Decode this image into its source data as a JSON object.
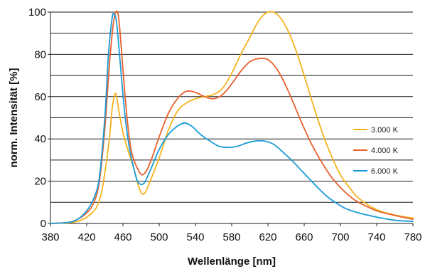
{
  "chart_data": {
    "type": "line",
    "xlabel": "Wellenlänge [nm]",
    "ylabel": "norm. Intensität [%]",
    "xlim": [
      380,
      780
    ],
    "ylim": [
      0,
      100
    ],
    "x_ticks": [
      "380",
      "420",
      "460",
      "500",
      "540",
      "580",
      "620",
      "660",
      "700",
      "740",
      "780"
    ],
    "y_ticks": [
      "0",
      "20",
      "40",
      "60",
      "80",
      "100"
    ],
    "grid": "horizontal",
    "legend_position": "right",
    "series": [
      {
        "name": "3.000 K",
        "color": "#F5B31C",
        "points": [
          [
            380,
            0
          ],
          [
            400,
            0.3
          ],
          [
            410,
            1
          ],
          [
            420,
            3
          ],
          [
            430,
            7
          ],
          [
            436,
            14
          ],
          [
            440,
            24
          ],
          [
            445,
            40
          ],
          [
            448,
            54
          ],
          [
            451,
            61
          ],
          [
            453,
            60
          ],
          [
            456,
            52
          ],
          [
            460,
            43
          ],
          [
            466,
            34
          ],
          [
            472,
            26
          ],
          [
            477,
            18
          ],
          [
            481,
            14
          ],
          [
            485,
            15
          ],
          [
            490,
            20
          ],
          [
            500,
            31
          ],
          [
            510,
            44
          ],
          [
            520,
            53
          ],
          [
            530,
            57
          ],
          [
            540,
            59
          ],
          [
            550,
            60
          ],
          [
            560,
            61
          ],
          [
            570,
            64
          ],
          [
            580,
            71
          ],
          [
            590,
            80
          ],
          [
            600,
            88
          ],
          [
            610,
            96
          ],
          [
            620,
            100
          ],
          [
            630,
            99
          ],
          [
            640,
            93
          ],
          [
            650,
            83
          ],
          [
            660,
            70
          ],
          [
            670,
            56
          ],
          [
            680,
            43
          ],
          [
            690,
            32
          ],
          [
            700,
            23
          ],
          [
            710,
            17
          ],
          [
            720,
            12
          ],
          [
            740,
            6.5
          ],
          [
            760,
            4
          ],
          [
            780,
            2.5
          ]
        ]
      },
      {
        "name": "4.000 K",
        "color": "#E8612C",
        "points": [
          [
            380,
            0
          ],
          [
            400,
            0.5
          ],
          [
            410,
            2
          ],
          [
            420,
            5
          ],
          [
            428,
            10
          ],
          [
            434,
            20
          ],
          [
            440,
            45
          ],
          [
            445,
            75
          ],
          [
            449,
            93
          ],
          [
            452,
            100
          ],
          [
            455,
            98
          ],
          [
            458,
            84
          ],
          [
            462,
            62
          ],
          [
            466,
            44
          ],
          [
            470,
            33
          ],
          [
            476,
            26
          ],
          [
            481,
            23
          ],
          [
            486,
            25
          ],
          [
            492,
            31
          ],
          [
            500,
            41
          ],
          [
            510,
            52
          ],
          [
            520,
            59
          ],
          [
            530,
            62.5
          ],
          [
            540,
            62
          ],
          [
            550,
            60
          ],
          [
            560,
            59
          ],
          [
            570,
            61
          ],
          [
            580,
            66
          ],
          [
            590,
            72
          ],
          [
            600,
            76.5
          ],
          [
            610,
            78
          ],
          [
            620,
            77.5
          ],
          [
            630,
            73
          ],
          [
            640,
            65
          ],
          [
            650,
            55
          ],
          [
            660,
            45
          ],
          [
            670,
            36
          ],
          [
            680,
            28.5
          ],
          [
            690,
            22
          ],
          [
            700,
            17
          ],
          [
            710,
            13
          ],
          [
            720,
            10
          ],
          [
            740,
            6
          ],
          [
            760,
            3.8
          ],
          [
            780,
            2
          ]
        ]
      },
      {
        "name": "6.000 K",
        "color": "#1A9BD7",
        "points": [
          [
            380,
            0
          ],
          [
            400,
            0.5
          ],
          [
            410,
            2
          ],
          [
            420,
            6
          ],
          [
            428,
            12
          ],
          [
            434,
            22
          ],
          [
            440,
            50
          ],
          [
            444,
            80
          ],
          [
            448,
            97
          ],
          [
            450,
            99
          ],
          [
            453,
            95
          ],
          [
            457,
            76
          ],
          [
            462,
            52
          ],
          [
            467,
            36
          ],
          [
            472,
            26
          ],
          [
            476,
            20
          ],
          [
            480,
            18.5
          ],
          [
            484,
            19.5
          ],
          [
            490,
            25
          ],
          [
            500,
            35
          ],
          [
            510,
            42
          ],
          [
            520,
            46
          ],
          [
            528,
            47.5
          ],
          [
            536,
            46
          ],
          [
            546,
            42
          ],
          [
            556,
            39
          ],
          [
            566,
            36.5
          ],
          [
            576,
            36
          ],
          [
            586,
            36.5
          ],
          [
            596,
            38
          ],
          [
            606,
            39
          ],
          [
            616,
            39
          ],
          [
            626,
            37.5
          ],
          [
            636,
            34
          ],
          [
            646,
            30
          ],
          [
            656,
            25.5
          ],
          [
            666,
            21
          ],
          [
            676,
            16.5
          ],
          [
            686,
            12.5
          ],
          [
            696,
            9.5
          ],
          [
            706,
            7
          ],
          [
            720,
            5
          ],
          [
            740,
            3
          ],
          [
            760,
            1.5
          ],
          [
            780,
            1
          ]
        ]
      }
    ]
  }
}
